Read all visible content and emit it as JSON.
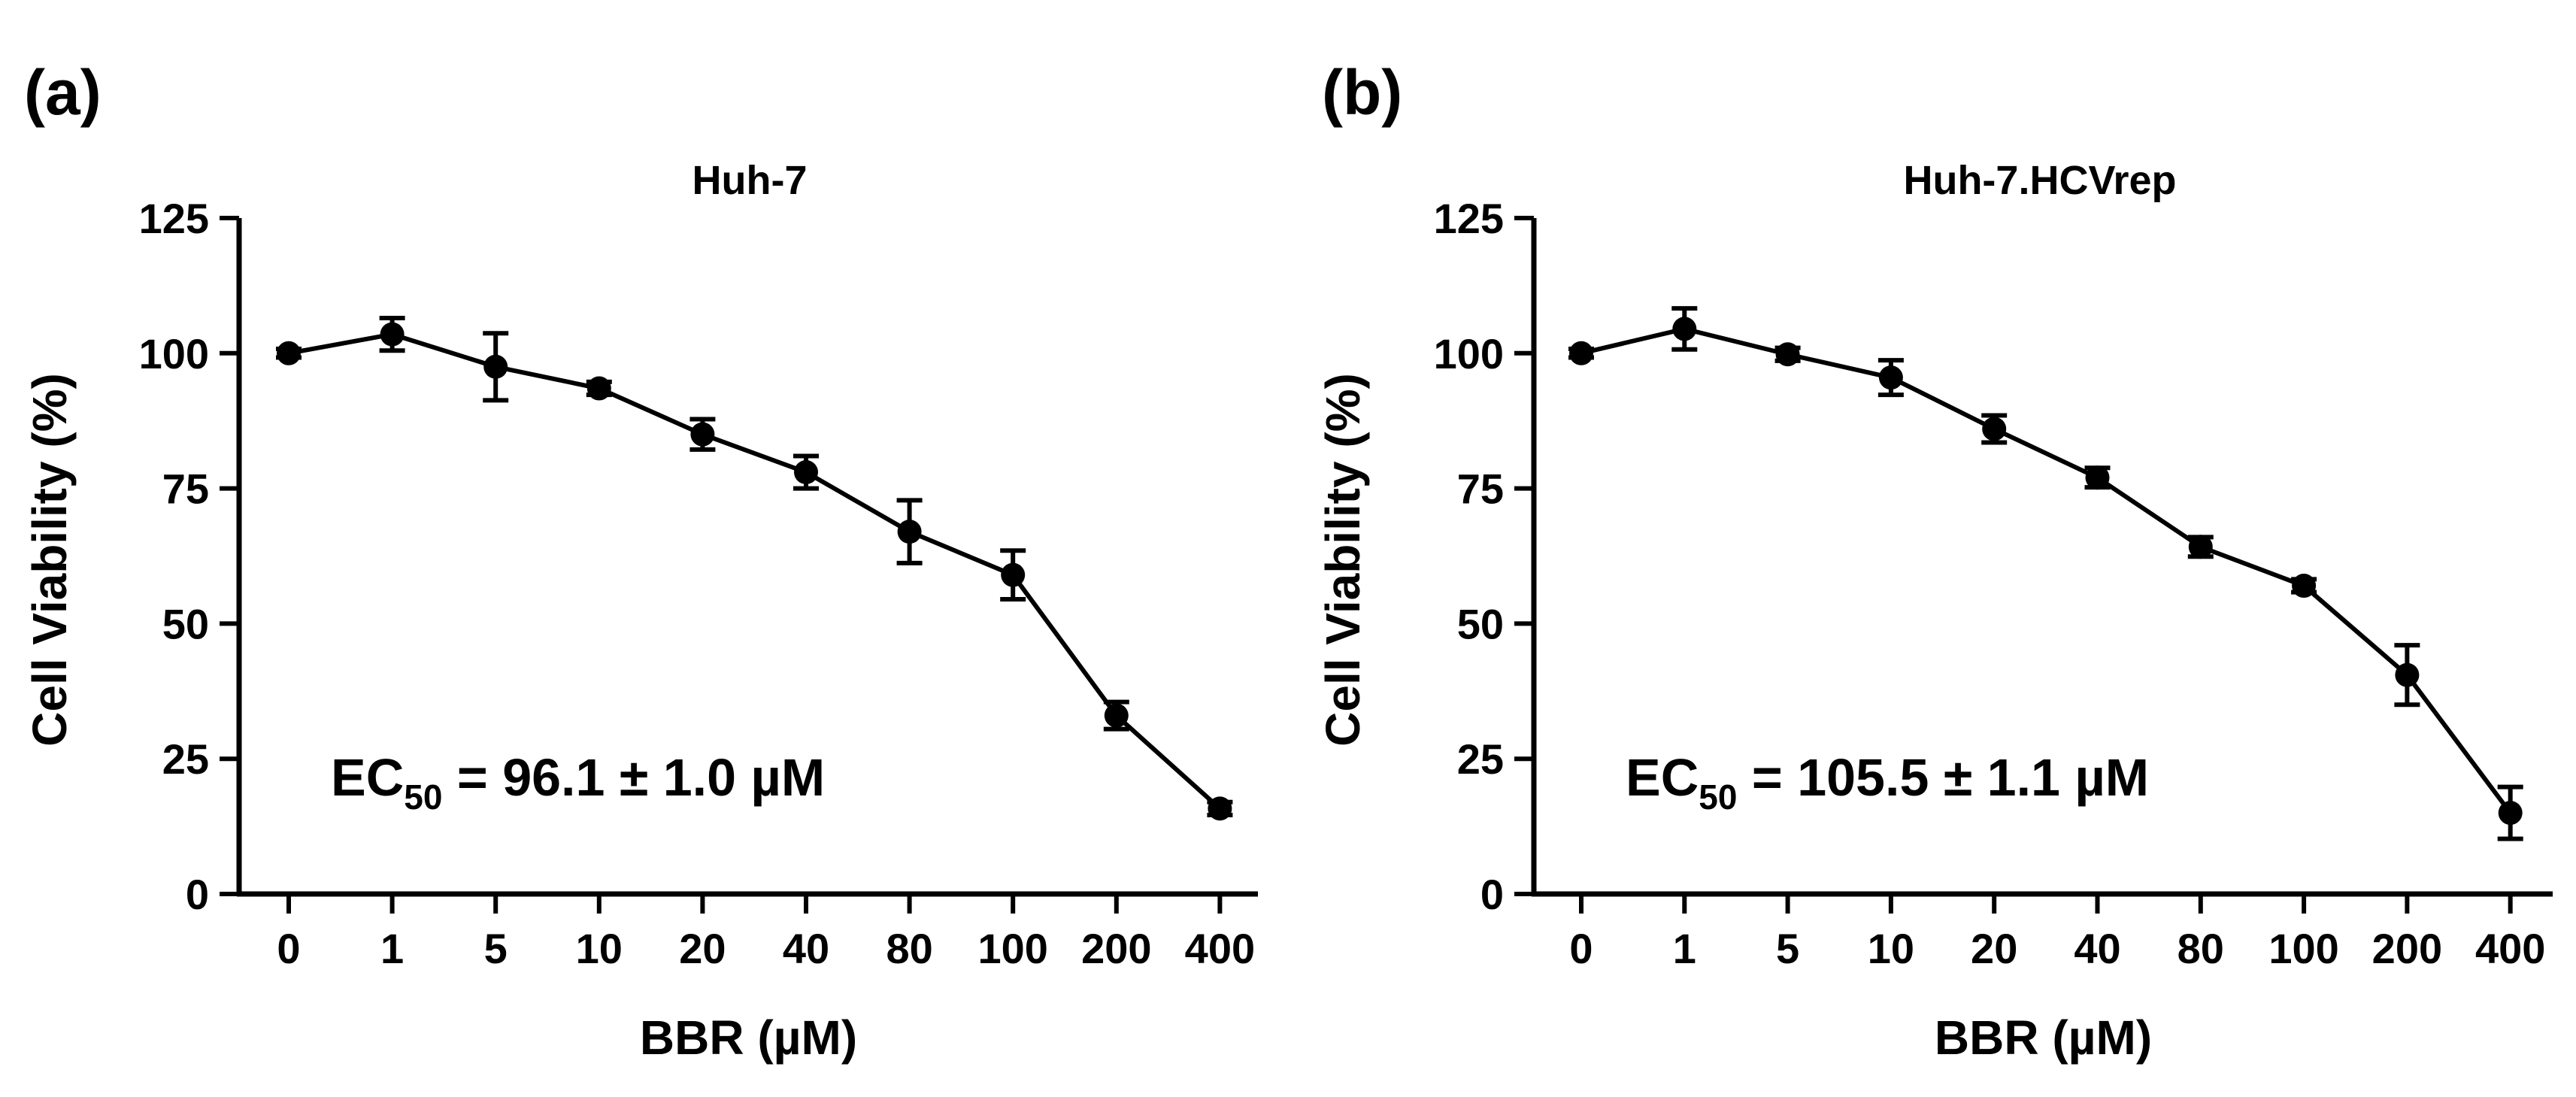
{
  "chart_data": [
    {
      "type": "line",
      "panel_label": "(a)",
      "title": "Huh-7",
      "xlabel": "BBR (µM)",
      "ylabel": "Cell Viability (%)",
      "categories": [
        "0",
        "1",
        "5",
        "10",
        "20",
        "40",
        "80",
        "100",
        "200",
        "400"
      ],
      "values": [
        100,
        103.5,
        97.5,
        93.5,
        85,
        78,
        67,
        59,
        33,
        15.8
      ],
      "errors": [
        0.8,
        3,
        6.2,
        1.2,
        2.8,
        3,
        5.8,
        4.5,
        2.5,
        1.2
      ],
      "ylim": [
        0,
        125
      ],
      "yticks": [
        "0",
        "25",
        "50",
        "75",
        "100",
        "125"
      ],
      "ec50_main": "EC",
      "ec50_sub": "50",
      "ec50_value": " = 96.1 ± 1.0 µM"
    },
    {
      "type": "line",
      "panel_label": "(b)",
      "title": "Huh-7.HCVrep",
      "xlabel": "BBR (µM)",
      "ylabel": "Cell Viability (%)",
      "categories": [
        "0",
        "1",
        "5",
        "10",
        "20",
        "40",
        "80",
        "100",
        "200",
        "400"
      ],
      "values": [
        100,
        104.5,
        99.8,
        95.5,
        86,
        77,
        64.2,
        57,
        40.5,
        15
      ],
      "errors": [
        0.8,
        3.8,
        1.2,
        3.2,
        2.5,
        1.8,
        1.8,
        1.2,
        5.5,
        4.8
      ],
      "ylim": [
        0,
        125
      ],
      "yticks": [
        "0",
        "25",
        "50",
        "75",
        "100",
        "125"
      ],
      "ec50_main": "EC",
      "ec50_sub": "50",
      "ec50_value": " = 105.5 ± 1.1 µM"
    }
  ]
}
